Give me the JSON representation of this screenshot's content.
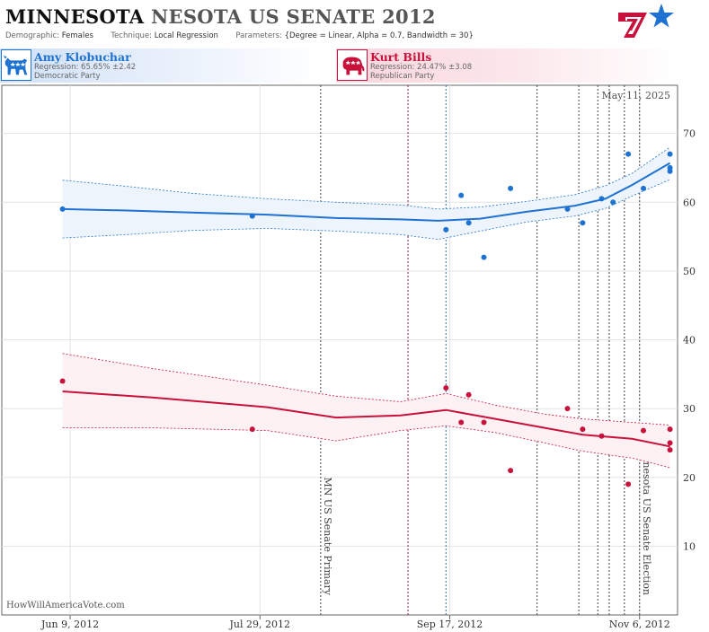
{
  "header": {
    "title_state": "MINNESOTA",
    "title_state2": "NESOTA",
    "title_race": "US SENATE 2012",
    "demographic_label": "Demographic:",
    "demographic_value": "Females",
    "technique_label": "Technique:",
    "technique_value": "Local Regression",
    "parameters_label": "Parameters:",
    "parameters_value": "{Degree = Linear, Alpha = 0.7, Bandwidth = 30}"
  },
  "candidates": [
    {
      "name": "Amy Klobuchar",
      "regression": "Regression: 65.65% ±2.42",
      "party": "Democratic Party",
      "color": "#1e73d2",
      "icon": "donkey-icon"
    },
    {
      "name": "Kurt Bills",
      "regression": "Regression: 24.47% ±3.08",
      "party": "Republican Party",
      "color": "#c8123c",
      "icon": "elephant-icon"
    }
  ],
  "footer": {
    "credit": "HowWillAmericaVote.com"
  },
  "chart_data": {
    "type": "scatter",
    "date_label": "May 11, 2025",
    "x_ticks": [
      {
        "date": "2012-06-09",
        "label": "Jun 9, 2012"
      },
      {
        "date": "2012-07-29",
        "label": "Jul 29, 2012"
      },
      {
        "date": "2012-09-17",
        "label": "Sep 17, 2012"
      },
      {
        "date": "2012-11-06",
        "label": "Nov 6, 2012"
      }
    ],
    "xlim": [
      "2012-05-22",
      "2012-11-16"
    ],
    "ylim": [
      0,
      77
    ],
    "y_ticks": [
      10,
      20,
      30,
      40,
      50,
      60,
      70
    ],
    "grid": true,
    "events": [
      {
        "date": "2012-08-14",
        "label": "MN US Senate Primary",
        "color": "#444444"
      },
      {
        "date": "2012-09-06",
        "label": "",
        "color": "#a0163a"
      },
      {
        "date": "2012-09-16",
        "label": "",
        "color": "#2a6fb5"
      },
      {
        "date": "2012-10-10",
        "label": "",
        "color": "#444444"
      },
      {
        "date": "2012-10-21",
        "label": "",
        "color": "#444444"
      },
      {
        "date": "2012-10-26",
        "label": "",
        "color": "#444444"
      },
      {
        "date": "2012-10-29",
        "label": "",
        "color": "#444444"
      },
      {
        "date": "2012-11-02",
        "label": "",
        "color": "#444444"
      },
      {
        "date": "2012-11-06",
        "label": "Minnesota US Senate Election",
        "color": "#444444"
      }
    ],
    "series": [
      {
        "name": "Amy Klobuchar",
        "color": "#1e73d2",
        "fill": "#eef4fc",
        "points": [
          {
            "x": "2012-06-07",
            "y": 59.0
          },
          {
            "x": "2012-07-27",
            "y": 58.0
          },
          {
            "x": "2012-09-16",
            "y": 56.0
          },
          {
            "x": "2012-09-20",
            "y": 61.0
          },
          {
            "x": "2012-09-22",
            "y": 57.0
          },
          {
            "x": "2012-09-26",
            "y": 52.0
          },
          {
            "x": "2012-10-03",
            "y": 62.0
          },
          {
            "x": "2012-10-18",
            "y": 59.0
          },
          {
            "x": "2012-10-22",
            "y": 57.0
          },
          {
            "x": "2012-10-27",
            "y": 60.5
          },
          {
            "x": "2012-10-30",
            "y": 60.0
          },
          {
            "x": "2012-11-03",
            "y": 67.0
          },
          {
            "x": "2012-11-07",
            "y": 62.0
          },
          {
            "x": "2012-11-14",
            "y": 67.0
          },
          {
            "x": "2012-11-14",
            "y": 65.0
          },
          {
            "x": "2012-11-14",
            "y": 64.5
          }
        ],
        "regression": [
          {
            "x": "2012-06-07",
            "y": 59.0,
            "lo": 54.8,
            "hi": 63.2
          },
          {
            "x": "2012-06-24",
            "y": 58.8,
            "lo": 55.3,
            "hi": 62.3
          },
          {
            "x": "2012-07-11",
            "y": 58.5,
            "lo": 55.9,
            "hi": 61.3
          },
          {
            "x": "2012-07-31",
            "y": 58.2,
            "lo": 56.2,
            "hi": 60.5
          },
          {
            "x": "2012-08-18",
            "y": 57.7,
            "lo": 55.8,
            "hi": 60.0
          },
          {
            "x": "2012-09-04",
            "y": 57.5,
            "lo": 55.3,
            "hi": 59.6
          },
          {
            "x": "2012-09-14",
            "y": 57.3,
            "lo": 54.6,
            "hi": 59.0
          },
          {
            "x": "2012-09-25",
            "y": 57.6,
            "lo": 55.8,
            "hi": 59.3
          },
          {
            "x": "2012-10-07",
            "y": 58.6,
            "lo": 57.1,
            "hi": 60.1
          },
          {
            "x": "2012-10-20",
            "y": 59.5,
            "lo": 58.0,
            "hi": 61.1
          },
          {
            "x": "2012-10-28",
            "y": 60.5,
            "lo": 59.1,
            "hi": 62.4
          },
          {
            "x": "2012-11-04",
            "y": 62.5,
            "lo": 60.9,
            "hi": 64.2
          },
          {
            "x": "2012-11-14",
            "y": 65.7,
            "lo": 63.3,
            "hi": 68.0
          }
        ]
      },
      {
        "name": "Kurt Bills",
        "color": "#c8123c",
        "fill": "#fdf1f3",
        "points": [
          {
            "x": "2012-06-07",
            "y": 34.0
          },
          {
            "x": "2012-07-27",
            "y": 27.0
          },
          {
            "x": "2012-09-16",
            "y": 33.0
          },
          {
            "x": "2012-09-20",
            "y": 28.0
          },
          {
            "x": "2012-09-22",
            "y": 32.0
          },
          {
            "x": "2012-09-26",
            "y": 28.0
          },
          {
            "x": "2012-10-03",
            "y": 21.0
          },
          {
            "x": "2012-10-18",
            "y": 30.0
          },
          {
            "x": "2012-10-22",
            "y": 27.0
          },
          {
            "x": "2012-10-27",
            "y": 26.0
          },
          {
            "x": "2012-11-03",
            "y": 19.0
          },
          {
            "x": "2012-11-07",
            "y": 26.8
          },
          {
            "x": "2012-11-14",
            "y": 27.0
          },
          {
            "x": "2012-11-14",
            "y": 25.0
          },
          {
            "x": "2012-11-14",
            "y": 24.0
          }
        ],
        "regression": [
          {
            "x": "2012-06-07",
            "y": 32.5,
            "lo": 27.2,
            "hi": 38.0
          },
          {
            "x": "2012-07-01",
            "y": 31.6,
            "lo": 27.2,
            "hi": 35.8
          },
          {
            "x": "2012-07-31",
            "y": 30.2,
            "lo": 26.8,
            "hi": 33.4
          },
          {
            "x": "2012-08-18",
            "y": 28.7,
            "lo": 25.3,
            "hi": 31.8
          },
          {
            "x": "2012-09-04",
            "y": 29.0,
            "lo": 26.8,
            "hi": 31.0
          },
          {
            "x": "2012-09-16",
            "y": 29.8,
            "lo": 27.5,
            "hi": 32.2
          },
          {
            "x": "2012-09-29",
            "y": 28.5,
            "lo": 26.5,
            "hi": 30.5
          },
          {
            "x": "2012-10-12",
            "y": 27.2,
            "lo": 25.0,
            "hi": 29.2
          },
          {
            "x": "2012-10-22",
            "y": 26.2,
            "lo": 23.8,
            "hi": 28.5
          },
          {
            "x": "2012-11-04",
            "y": 25.6,
            "lo": 22.8,
            "hi": 28.0
          },
          {
            "x": "2012-11-14",
            "y": 24.5,
            "lo": 21.4,
            "hi": 27.6
          }
        ]
      }
    ]
  }
}
